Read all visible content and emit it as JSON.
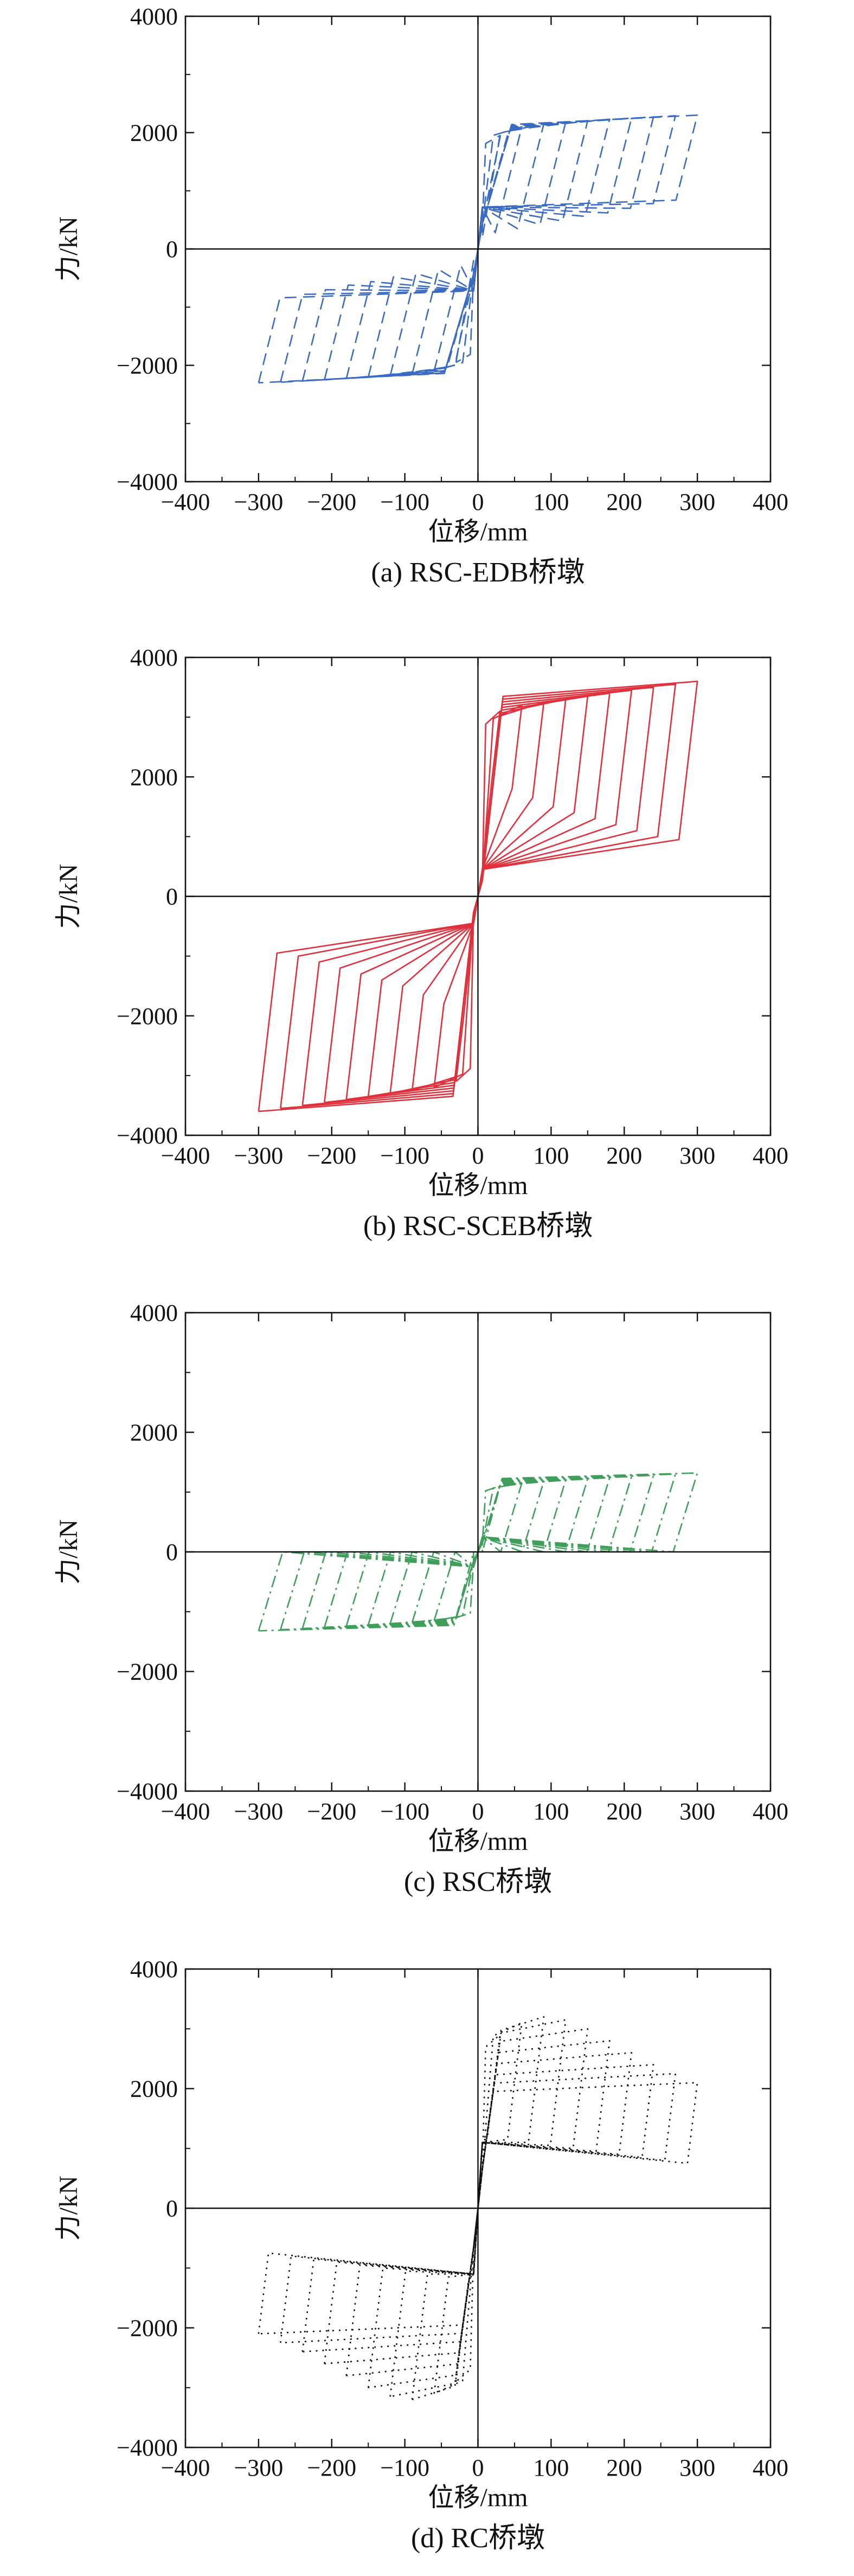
{
  "chart_data": [
    {
      "type": "line",
      "caption": "(a) RSC-EDB桥墩",
      "xlabel": "位移/mm",
      "ylabel": "力/kN",
      "xlim": [
        -400,
        400
      ],
      "ylim": [
        -4000,
        4000
      ],
      "xticks": [
        "−400",
        "−300",
        "−200",
        "−100",
        "0",
        "100",
        "200",
        "300",
        "400"
      ],
      "yticks": [
        "4000",
        "2000",
        "0",
        "−2000",
        "−4000"
      ],
      "grid": false,
      "line_style": "dashed",
      "color": "#3a6bc4",
      "series": [
        {
          "peak_displacement": [
            30,
            60,
            90,
            120,
            150,
            180,
            210,
            240,
            270,
            300
          ],
          "peak_force": [
            1950,
            2100,
            2150,
            2180,
            2200,
            2230,
            2250,
            2270,
            2290,
            2300
          ],
          "unload_force": [
            200,
            280,
            350,
            420,
            480,
            560,
            620,
            700,
            780,
            840
          ],
          "elastic_stiffness": 50,
          "pinch_force": 720
        }
      ]
    },
    {
      "type": "line",
      "caption": "(b) RSC-SCEB桥墩",
      "xlabel": "位移/mm",
      "ylabel": "力/kN",
      "xlim": [
        -400,
        400
      ],
      "ylim": [
        -4000,
        4000
      ],
      "xticks": [
        "−400",
        "−300",
        "−200",
        "−100",
        "0",
        "100",
        "200",
        "300",
        "400"
      ],
      "yticks": [
        "4000",
        "2000",
        "0",
        "−2000",
        "−4000"
      ],
      "grid": false,
      "line_style": "solid",
      "color": "#e0303c",
      "series": [
        {
          "peak_displacement": [
            30,
            60,
            90,
            120,
            150,
            180,
            210,
            240,
            270,
            300
          ],
          "peak_force": [
            3100,
            3200,
            3250,
            3300,
            3350,
            3400,
            3450,
            3500,
            3550,
            3600
          ],
          "unload_force": [
            2000,
            1800,
            1650,
            1500,
            1400,
            1300,
            1200,
            1100,
            1000,
            950
          ],
          "elastic_stiffness": 105,
          "pinch_force": 450
        }
      ]
    },
    {
      "type": "line",
      "caption": "(c) RSC桥墩",
      "xlabel": "位移/mm",
      "ylabel": "力/kN",
      "xlim": [
        -400,
        400
      ],
      "ylim": [
        -4000,
        4000
      ],
      "xticks": [
        "−400",
        "−300",
        "−200",
        "−100",
        "0",
        "100",
        "200",
        "300",
        "400"
      ],
      "yticks": [
        "4000",
        "2000",
        "0",
        "−2000",
        "−4000"
      ],
      "grid": false,
      "line_style": "dashdot",
      "color": "#3e9e5a",
      "series": [
        {
          "peak_displacement": [
            30,
            60,
            90,
            120,
            150,
            180,
            210,
            240,
            270,
            300
          ],
          "peak_force": [
            1100,
            1150,
            1180,
            1200,
            1220,
            1240,
            1260,
            1280,
            1300,
            1320
          ],
          "unload_force": [
            0,
            0,
            0,
            0,
            0,
            0,
            0,
            0,
            0,
            0
          ],
          "elastic_stiffness": 40,
          "pinch_force": 250
        }
      ]
    },
    {
      "type": "line",
      "caption": "(d) RC桥墩",
      "xlabel": "位移/mm",
      "ylabel": "力/kN",
      "xlim": [
        -400,
        400
      ],
      "ylim": [
        -4000,
        4000
      ],
      "xticks": [
        "−400",
        "−300",
        "−200",
        "−100",
        "0",
        "100",
        "200",
        "300",
        "400"
      ],
      "yticks": [
        "4000",
        "2000",
        "0",
        "−2000",
        "−4000"
      ],
      "grid": false,
      "line_style": "dotted",
      "color": "#111111",
      "series": [
        {
          "peak_displacement": [
            30,
            60,
            90,
            120,
            150,
            180,
            210,
            240,
            270,
            300
          ],
          "peak_force": [
            2900,
            3100,
            3200,
            3150,
            3000,
            2800,
            2600,
            2400,
            2250,
            2100
          ],
          "unload_force": [
            1200,
            1150,
            1100,
            1050,
            1000,
            950,
            900,
            850,
            800,
            750
          ],
          "elastic_stiffness": 100,
          "pinch_force": 1100
        }
      ]
    }
  ]
}
